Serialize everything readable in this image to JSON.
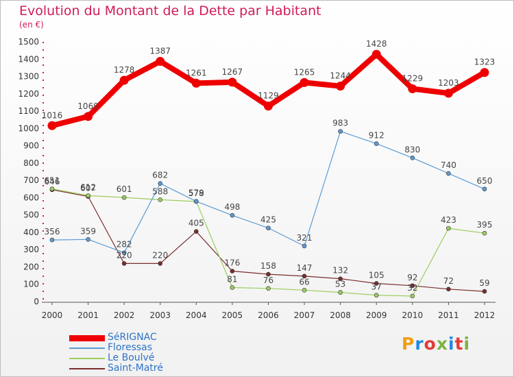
{
  "header": {
    "title": "Evolution du Montant de la Dette par Habitant",
    "unit": "(en €)"
  },
  "brand": {
    "text": "Proxiti",
    "letter_colors": [
      "#f39c12",
      "#1e88e5",
      "#e53935",
      "#7cb342",
      "#1e88e5",
      "#e53935",
      "#7cb342"
    ]
  },
  "chart_data": {
    "type": "line",
    "x": [
      "2000",
      "2001",
      "2002",
      "2003",
      "2004",
      "2005",
      "2006",
      "2007",
      "2008",
      "2009",
      "2010",
      "2011",
      "2012"
    ],
    "ylim": [
      0,
      1500
    ],
    "yticks": [
      0,
      100,
      200,
      300,
      400,
      500,
      600,
      700,
      800,
      900,
      1000,
      1100,
      1200,
      1300,
      1400,
      1500
    ],
    "grid": false,
    "legend_position": "bottom-left",
    "series": [
      {
        "name": "SéRIGNAC",
        "color": "#ee0000",
        "line_width": 8,
        "marker_radius": 6.5,
        "values": [
          1016,
          1069,
          1278,
          1387,
          1261,
          1267,
          1129,
          1265,
          1244,
          1428,
          1229,
          1203,
          1323
        ]
      },
      {
        "name": "Floressas",
        "color": "#5b9bd5",
        "line_width": 1.2,
        "marker_radius": 3,
        "values": [
          356,
          359,
          282,
          682,
          579,
          498,
          425,
          321,
          983,
          912,
          830,
          740,
          650
        ]
      },
      {
        "name": "Le Boulvé",
        "color": "#9acd5a",
        "line_width": 1.2,
        "marker_radius": 3,
        "values": [
          651,
          612,
          601,
          588,
          578,
          81,
          76,
          66,
          53,
          37,
          32,
          423,
          395
        ]
      },
      {
        "name": "Saint-Matré",
        "color": "#7b2c2c",
        "line_width": 1.2,
        "marker_radius": 3,
        "values": [
          646,
          607,
          220,
          220,
          405,
          176,
          158,
          147,
          132,
          105,
          92,
          72,
          59
        ]
      }
    ]
  }
}
